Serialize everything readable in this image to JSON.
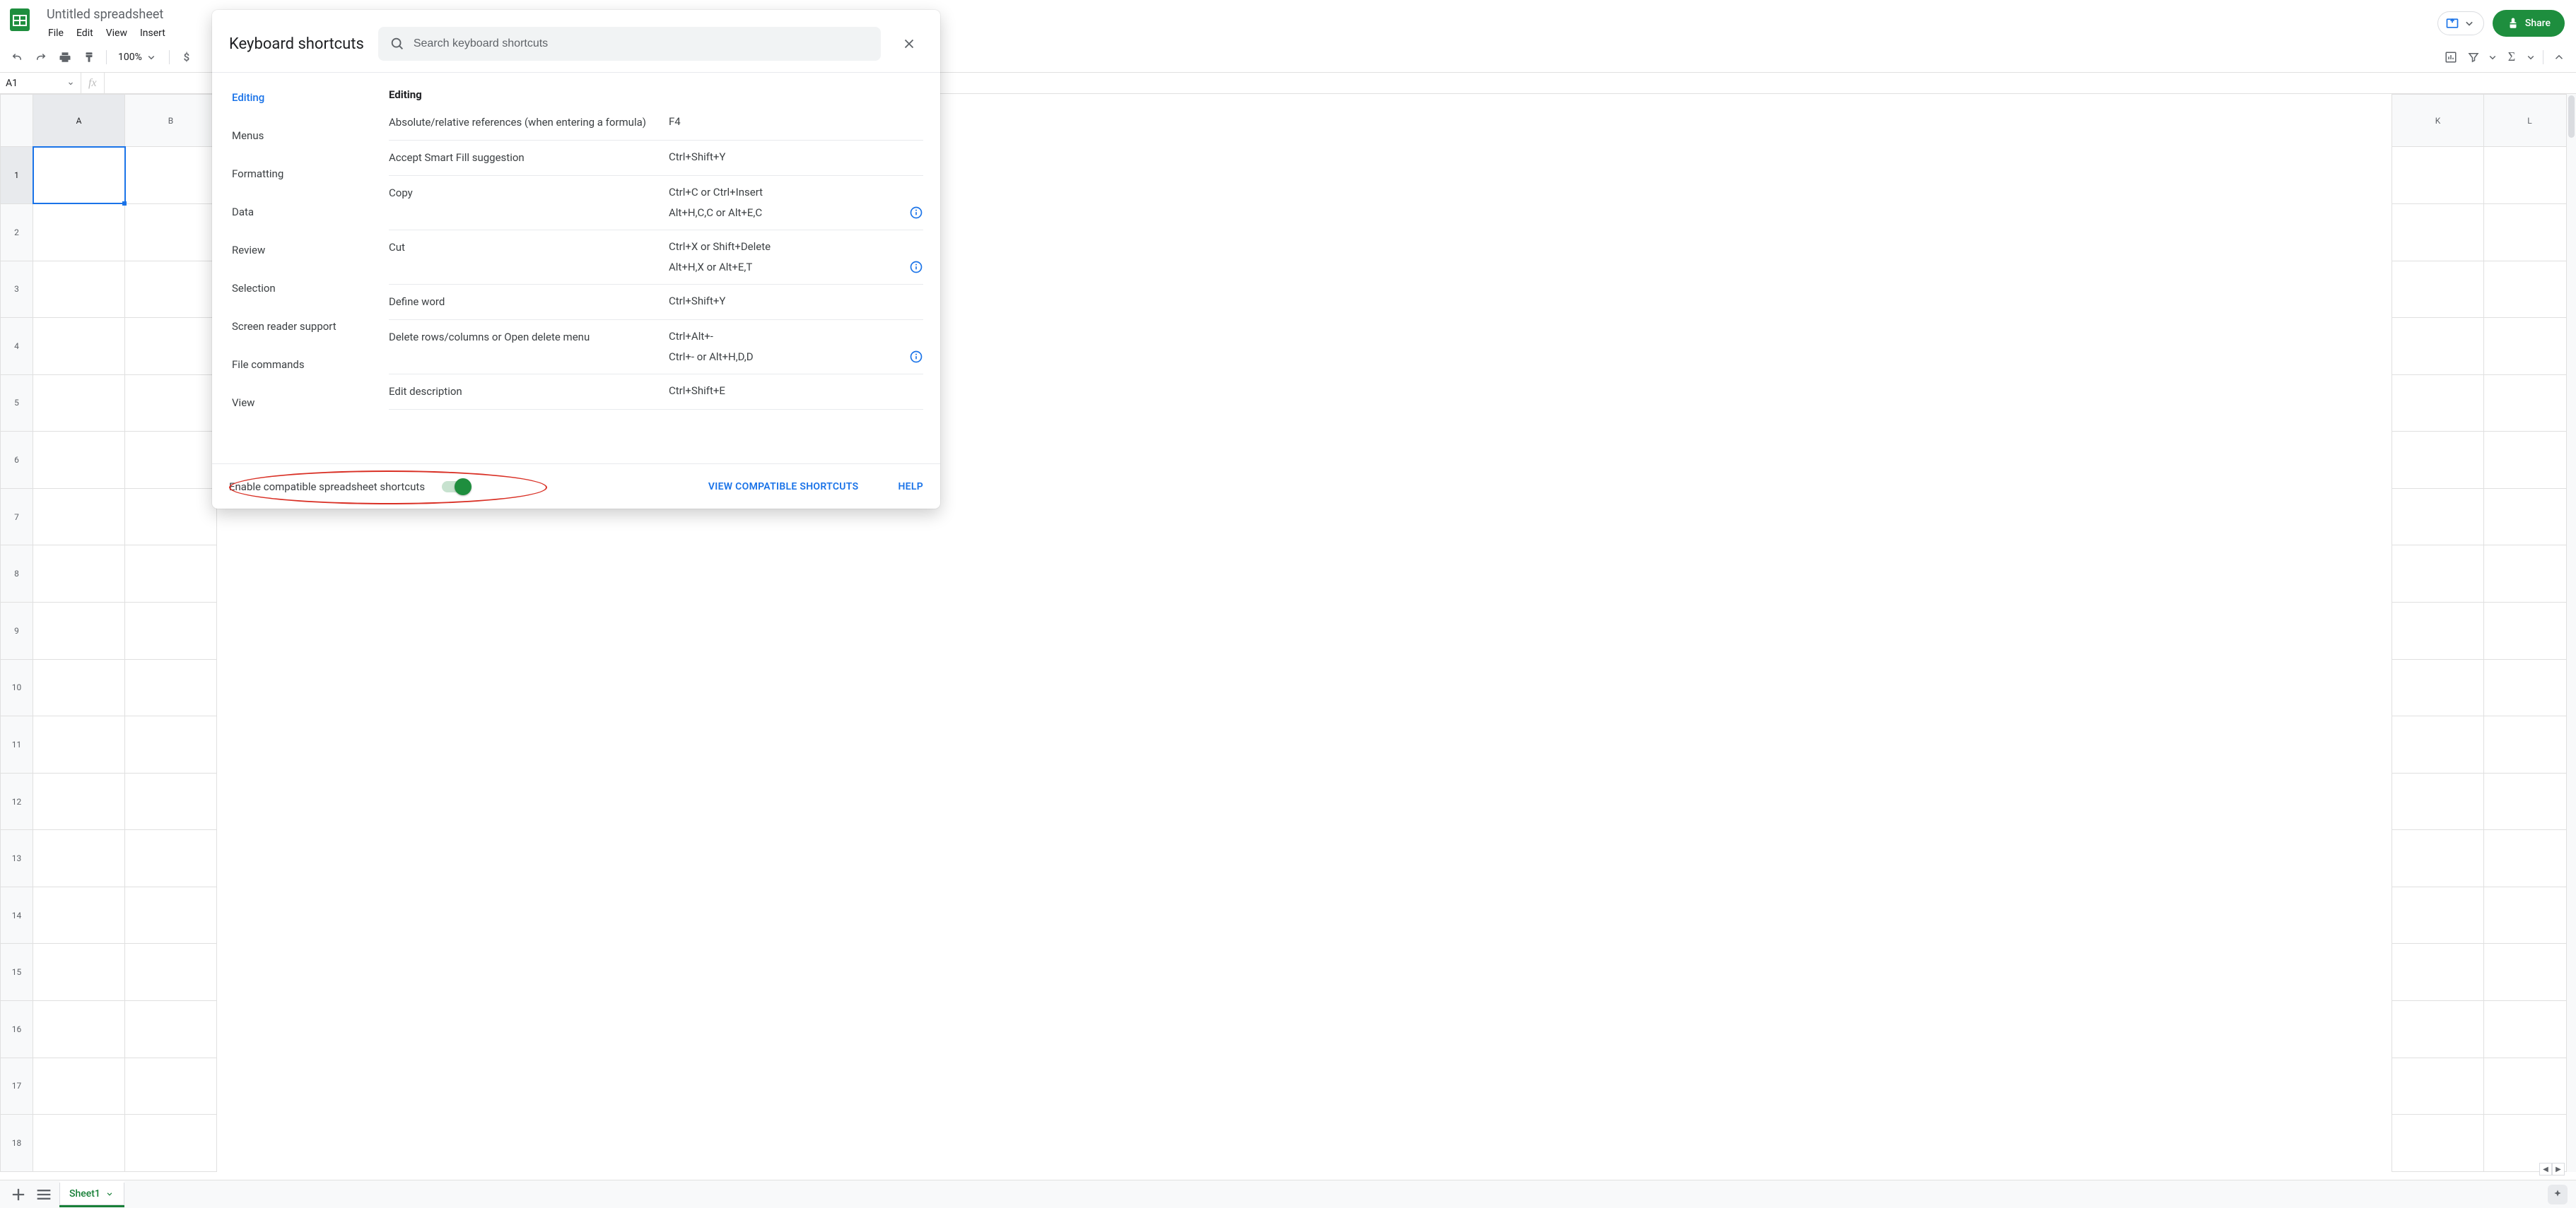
{
  "app": {
    "doc_title": "Untitled spreadsheet",
    "menubar": [
      "File",
      "Edit",
      "View",
      "Insert"
    ],
    "share_label": "Share"
  },
  "toolbar": {
    "zoom": "100%",
    "currency_hint": "$"
  },
  "fx": {
    "name_box": "A1",
    "fx_label": "fx"
  },
  "grid": {
    "columns": [
      "A",
      "B",
      "K",
      "L"
    ],
    "visible_left_cols": [
      "A",
      "B"
    ],
    "visible_right_cols": [
      "K",
      "L"
    ],
    "rows": 18,
    "selected_cell": "A1"
  },
  "sheettabs": {
    "active": "Sheet1"
  },
  "dialog": {
    "title": "Keyboard shortcuts",
    "search_placeholder": "Search keyboard shortcuts",
    "sidebar": [
      "Editing",
      "Menus",
      "Formatting",
      "Data",
      "Review",
      "Selection",
      "Screen reader support",
      "File commands",
      "View"
    ],
    "sidebar_active": "Editing",
    "section_title": "Editing",
    "shortcuts": [
      {
        "desc": "Absolute/relative references (when entering a formula)",
        "keys": [
          "F4"
        ],
        "info": false
      },
      {
        "desc": "Accept Smart Fill suggestion",
        "keys": [
          "Ctrl+Shift+Y"
        ],
        "info": false
      },
      {
        "desc": "Copy",
        "keys": [
          "Ctrl+C or Ctrl+Insert",
          "Alt+H,C,C or Alt+E,C"
        ],
        "info": true
      },
      {
        "desc": "Cut",
        "keys": [
          "Ctrl+X or Shift+Delete",
          "Alt+H,X or Alt+E,T"
        ],
        "info": true
      },
      {
        "desc": "Define word",
        "keys": [
          "Ctrl+Shift+Y"
        ],
        "info": false
      },
      {
        "desc": "Delete rows/columns or Open delete menu",
        "keys": [
          "Ctrl+Alt+-",
          "Ctrl+- or Alt+H,D,D"
        ],
        "info": true
      },
      {
        "desc": "Edit description",
        "keys": [
          "Ctrl+Shift+E"
        ],
        "info": false
      }
    ],
    "footer": {
      "toggle_label": "Enable compatible spreadsheet shortcuts",
      "toggle_on": true,
      "view_link": "VIEW COMPATIBLE SHORTCUTS",
      "help_link": "HELP"
    }
  },
  "colors": {
    "accent_blue": "#1a73e8",
    "sheets_green": "#1e8e3e",
    "text": "#202124",
    "muted": "#5f6368",
    "border": "#e0e0e0",
    "annotation": "#d93025"
  }
}
